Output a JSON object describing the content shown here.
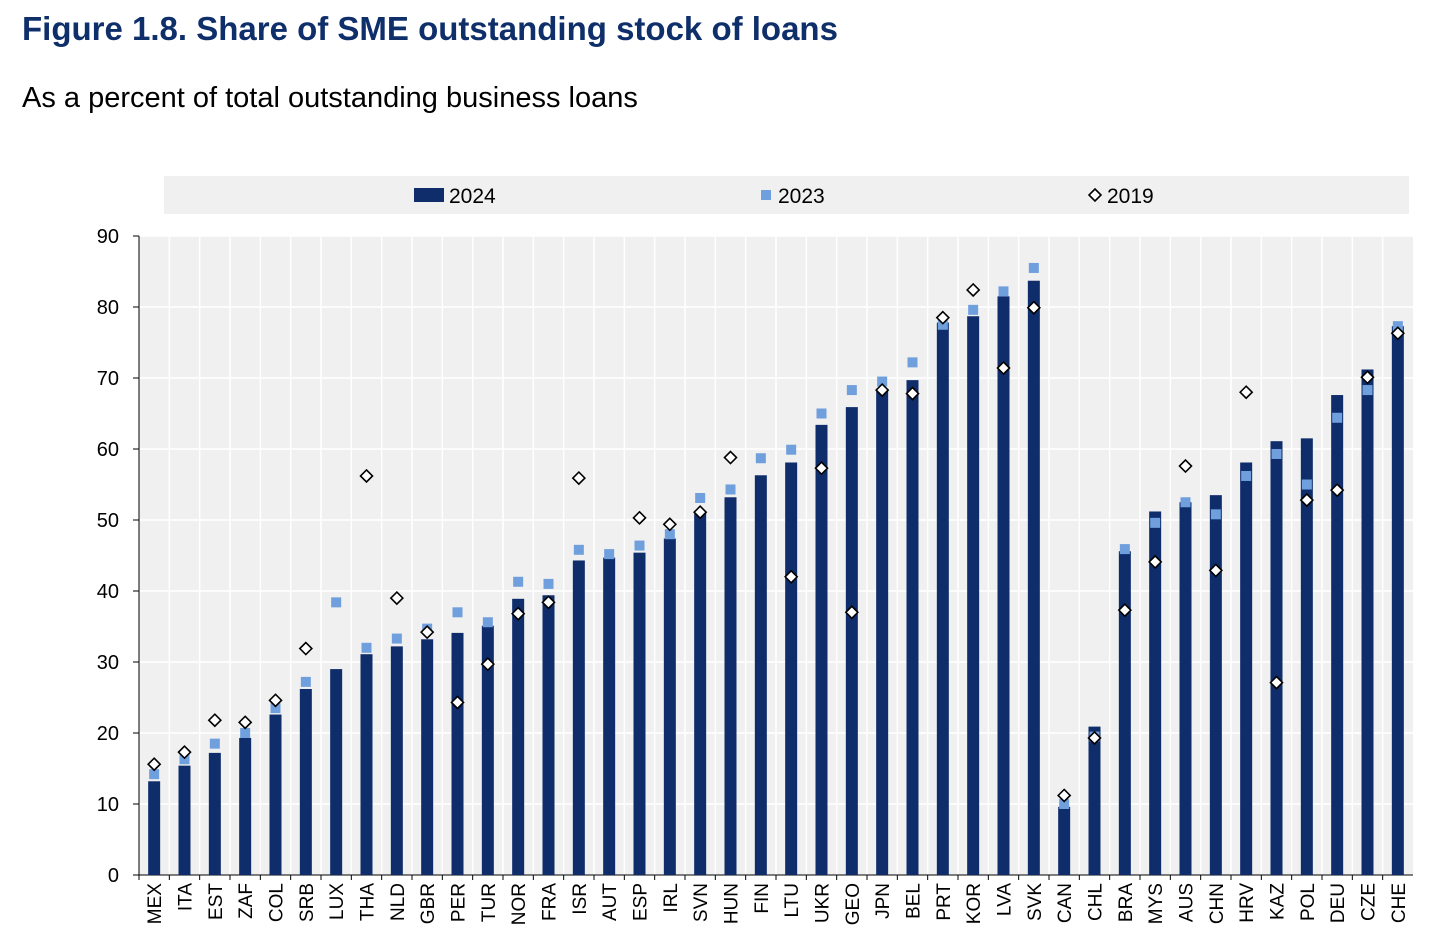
{
  "figure": {
    "title": "Figure 1.8. Share of SME outstanding stock of loans",
    "subtitle": "As a percent of total outstanding business loans"
  },
  "colors": {
    "bar_2024": "#0f2d6b",
    "marker_2023": "#6f9fdd",
    "marker_2019_fill": "#ffffff",
    "marker_2019_stroke": "#000000",
    "plot_background": "#f0f0f0",
    "gridline": "#ffffff",
    "legend_background": "#f0f0f0"
  },
  "chart_data": {
    "type": "bar",
    "title": "",
    "xlabel": "",
    "ylabel": "",
    "ylim": [
      0,
      90
    ],
    "yticks": [
      0,
      10,
      20,
      30,
      40,
      50,
      60,
      70,
      80,
      90
    ],
    "grid": true,
    "legend_position": "top",
    "categories": [
      "MEX",
      "ITA",
      "EST",
      "ZAF",
      "COL",
      "SRB",
      "LUX",
      "THA",
      "NLD",
      "GBR",
      "PER",
      "TUR",
      "NOR",
      "FRA",
      "ISR",
      "AUT",
      "ESP",
      "IRL",
      "SVN",
      "HUN",
      "FIN",
      "LTU",
      "UKR",
      "GEO",
      "JPN",
      "BEL",
      "PRT",
      "KOR",
      "LVA",
      "SVK",
      "CAN",
      "CHL",
      "BRA",
      "MYS",
      "AUS",
      "CHN",
      "HRV",
      "KAZ",
      "POL",
      "DEU",
      "CZE",
      "CHE"
    ],
    "series": [
      {
        "name": "2024",
        "kind": "bar",
        "values": [
          13.2,
          15.4,
          17.2,
          19.3,
          22.6,
          26.2,
          29.0,
          31.1,
          32.2,
          33.2,
          34.1,
          35.1,
          38.9,
          39.4,
          44.3,
          44.7,
          45.4,
          47.4,
          51.3,
          53.2,
          56.3,
          58.1,
          63.4,
          65.9,
          68.5,
          69.7,
          77.8,
          78.7,
          81.5,
          83.7,
          9.6,
          20.9,
          45.6,
          51.2,
          52.5,
          53.5,
          58.1,
          61.1,
          61.5,
          67.6,
          71.2,
          77.3
        ]
      },
      {
        "name": "2023",
        "kind": "square",
        "values": [
          14.2,
          16.3,
          18.5,
          20.0,
          23.5,
          27.2,
          38.4,
          32.0,
          33.3,
          34.7,
          37.0,
          35.6,
          41.3,
          41.0,
          45.8,
          45.2,
          46.4,
          48.0,
          53.1,
          54.3,
          58.7,
          59.9,
          65.0,
          68.3,
          69.5,
          72.2,
          77.5,
          79.6,
          82.2,
          85.5,
          10.0,
          19.5,
          45.9,
          49.6,
          52.5,
          50.8,
          56.2,
          59.3,
          55.0,
          64.4,
          68.3,
          77.3
        ]
      },
      {
        "name": "2019",
        "kind": "diamond",
        "values": [
          15.6,
          17.3,
          21.8,
          21.5,
          24.6,
          31.9,
          null,
          56.2,
          39.0,
          34.2,
          24.3,
          29.7,
          36.8,
          38.4,
          55.9,
          null,
          50.3,
          49.4,
          51.1,
          58.8,
          null,
          42.0,
          57.3,
          37.0,
          68.3,
          67.8,
          78.5,
          82.4,
          71.4,
          79.9,
          11.2,
          19.3,
          37.3,
          44.1,
          57.6,
          42.9,
          68.0,
          27.1,
          52.8,
          54.2,
          70.1,
          76.3
        ]
      }
    ]
  }
}
